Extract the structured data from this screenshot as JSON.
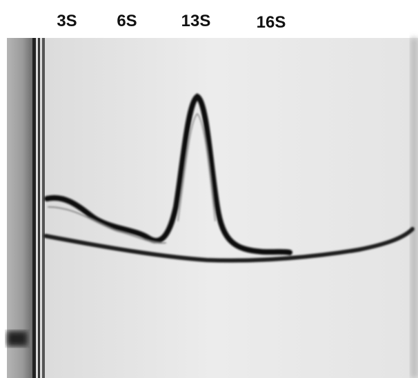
{
  "labels": [
    "3S",
    "6S",
    "13S",
    "16S"
  ]
}
